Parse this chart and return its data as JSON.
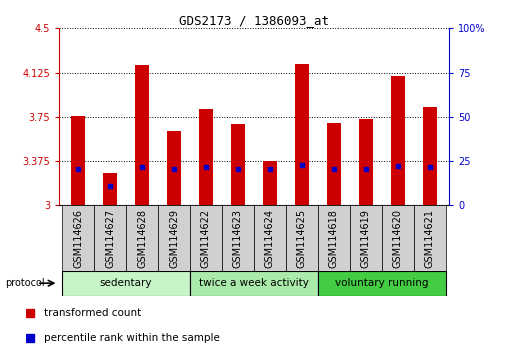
{
  "title": "GDS2173 / 1386093_at",
  "samples": [
    "GSM114626",
    "GSM114627",
    "GSM114628",
    "GSM114629",
    "GSM114622",
    "GSM114623",
    "GSM114624",
    "GSM114625",
    "GSM114618",
    "GSM114619",
    "GSM114620",
    "GSM114621"
  ],
  "transformed_count": [
    3.76,
    3.27,
    4.19,
    3.63,
    3.82,
    3.69,
    3.375,
    4.2,
    3.7,
    3.73,
    4.1,
    3.83
  ],
  "percentile_rank": [
    3.305,
    3.16,
    3.325,
    3.31,
    3.325,
    3.31,
    3.305,
    3.345,
    3.305,
    3.31,
    3.335,
    3.325
  ],
  "bar_base": 3.0,
  "ylim_left": [
    3.0,
    4.5
  ],
  "ylim_right": [
    0,
    100
  ],
  "yticks_left": [
    3.0,
    3.375,
    3.75,
    4.125,
    4.5
  ],
  "ytick_labels_left": [
    "3",
    "3.375",
    "3.75",
    "4.125",
    "4.5"
  ],
  "yticks_right": [
    0,
    25,
    50,
    75,
    100
  ],
  "ytick_labels_right": [
    "0",
    "25",
    "50",
    "75",
    "100%"
  ],
  "groups": [
    {
      "label": "sedentary",
      "start": 0,
      "end": 4,
      "color": "#c8f5c8"
    },
    {
      "label": "twice a week activity",
      "start": 4,
      "end": 8,
      "color": "#aaeaaa"
    },
    {
      "label": "voluntary running",
      "start": 8,
      "end": 12,
      "color": "#44cc44"
    }
  ],
  "bar_color": "#cc0000",
  "dot_color": "#0000cc",
  "bar_width": 0.45,
  "grid_color": "#000000",
  "background_color": "#ffffff",
  "tick_color_left": "#cc0000",
  "tick_color_right": "#0000cc",
  "sample_box_color": "#d0d0d0",
  "title_fontsize": 9,
  "tick_fontsize": 7,
  "label_fontsize": 7,
  "group_fontsize": 7.5,
  "legend_fontsize": 7.5
}
